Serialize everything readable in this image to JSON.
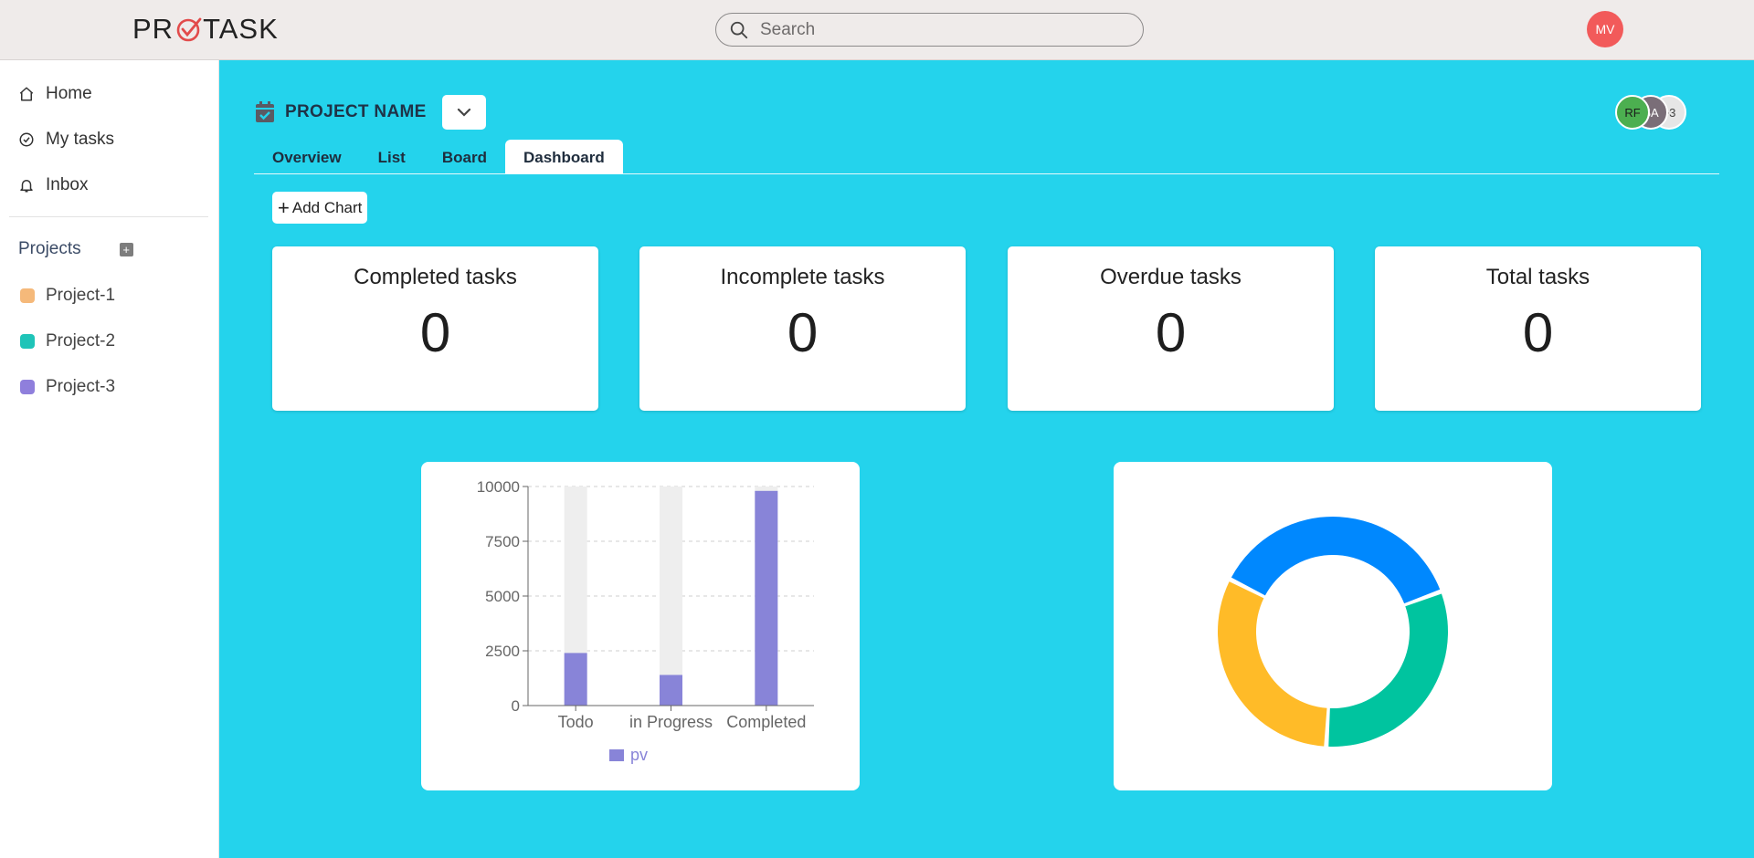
{
  "app": {
    "logo_left": "PR",
    "logo_right": "TASK",
    "search_placeholder": "Search",
    "user_initials": "MV",
    "user_avatar_color": "#f25a5a"
  },
  "sidebar": {
    "nav": [
      {
        "label": "Home",
        "icon": "home-icon"
      },
      {
        "label": "My tasks",
        "icon": "check-circle-icon"
      },
      {
        "label": "Inbox",
        "icon": "bell-icon"
      }
    ],
    "projects_heading": "Projects",
    "add_project_icon": "plus-square-icon",
    "projects": [
      {
        "label": "Project-1",
        "color": "#f5b97a"
      },
      {
        "label": "Project-2",
        "color": "#1fc4b8"
      },
      {
        "label": "Project-3",
        "color": "#8f7fdc"
      }
    ]
  },
  "project": {
    "title": "PROJECT NAME",
    "title_icon": "calendar-icon",
    "dropdown_icon": "chevron-down-icon",
    "members": [
      {
        "initials": "RF",
        "color": "#4caf50",
        "text_color": "#1c1c1c"
      },
      {
        "initials": "SA",
        "color": "#7a6e78",
        "text_color": "#ffffff"
      },
      {
        "initials": "+3",
        "color": "#e6e6e6",
        "text_color": "#444444"
      }
    ]
  },
  "tabs": [
    {
      "label": "Overview",
      "active": false
    },
    {
      "label": "List",
      "active": false
    },
    {
      "label": "Board",
      "active": false
    },
    {
      "label": "Dashboard",
      "active": true
    }
  ],
  "dashboard": {
    "add_chart_label": "Add Chart",
    "stats": [
      {
        "label": "Completed tasks",
        "value": "0"
      },
      {
        "label": "Incomplete tasks",
        "value": "0"
      },
      {
        "label": "Overdue tasks",
        "value": "0"
      },
      {
        "label": "Total tasks",
        "value": "0"
      }
    ]
  },
  "chart_data": [
    {
      "type": "bar",
      "categories": [
        "Todo",
        "in Progress",
        "Completed"
      ],
      "series": [
        {
          "name": "pv",
          "values": [
            2400,
            1398,
            9800
          ],
          "color": "#8884d8"
        }
      ],
      "background_bar": 10000,
      "yticks": [
        0,
        2500,
        5000,
        7500,
        10000
      ],
      "ylim": [
        0,
        10000
      ],
      "grid": true,
      "legend": "bottom"
    },
    {
      "type": "pie",
      "donut": true,
      "slices": [
        {
          "value": 35,
          "color": "#0088fe"
        },
        {
          "value": 30,
          "color": "#00c49f"
        },
        {
          "value": 30,
          "color": "#ffbb28"
        }
      ]
    }
  ]
}
